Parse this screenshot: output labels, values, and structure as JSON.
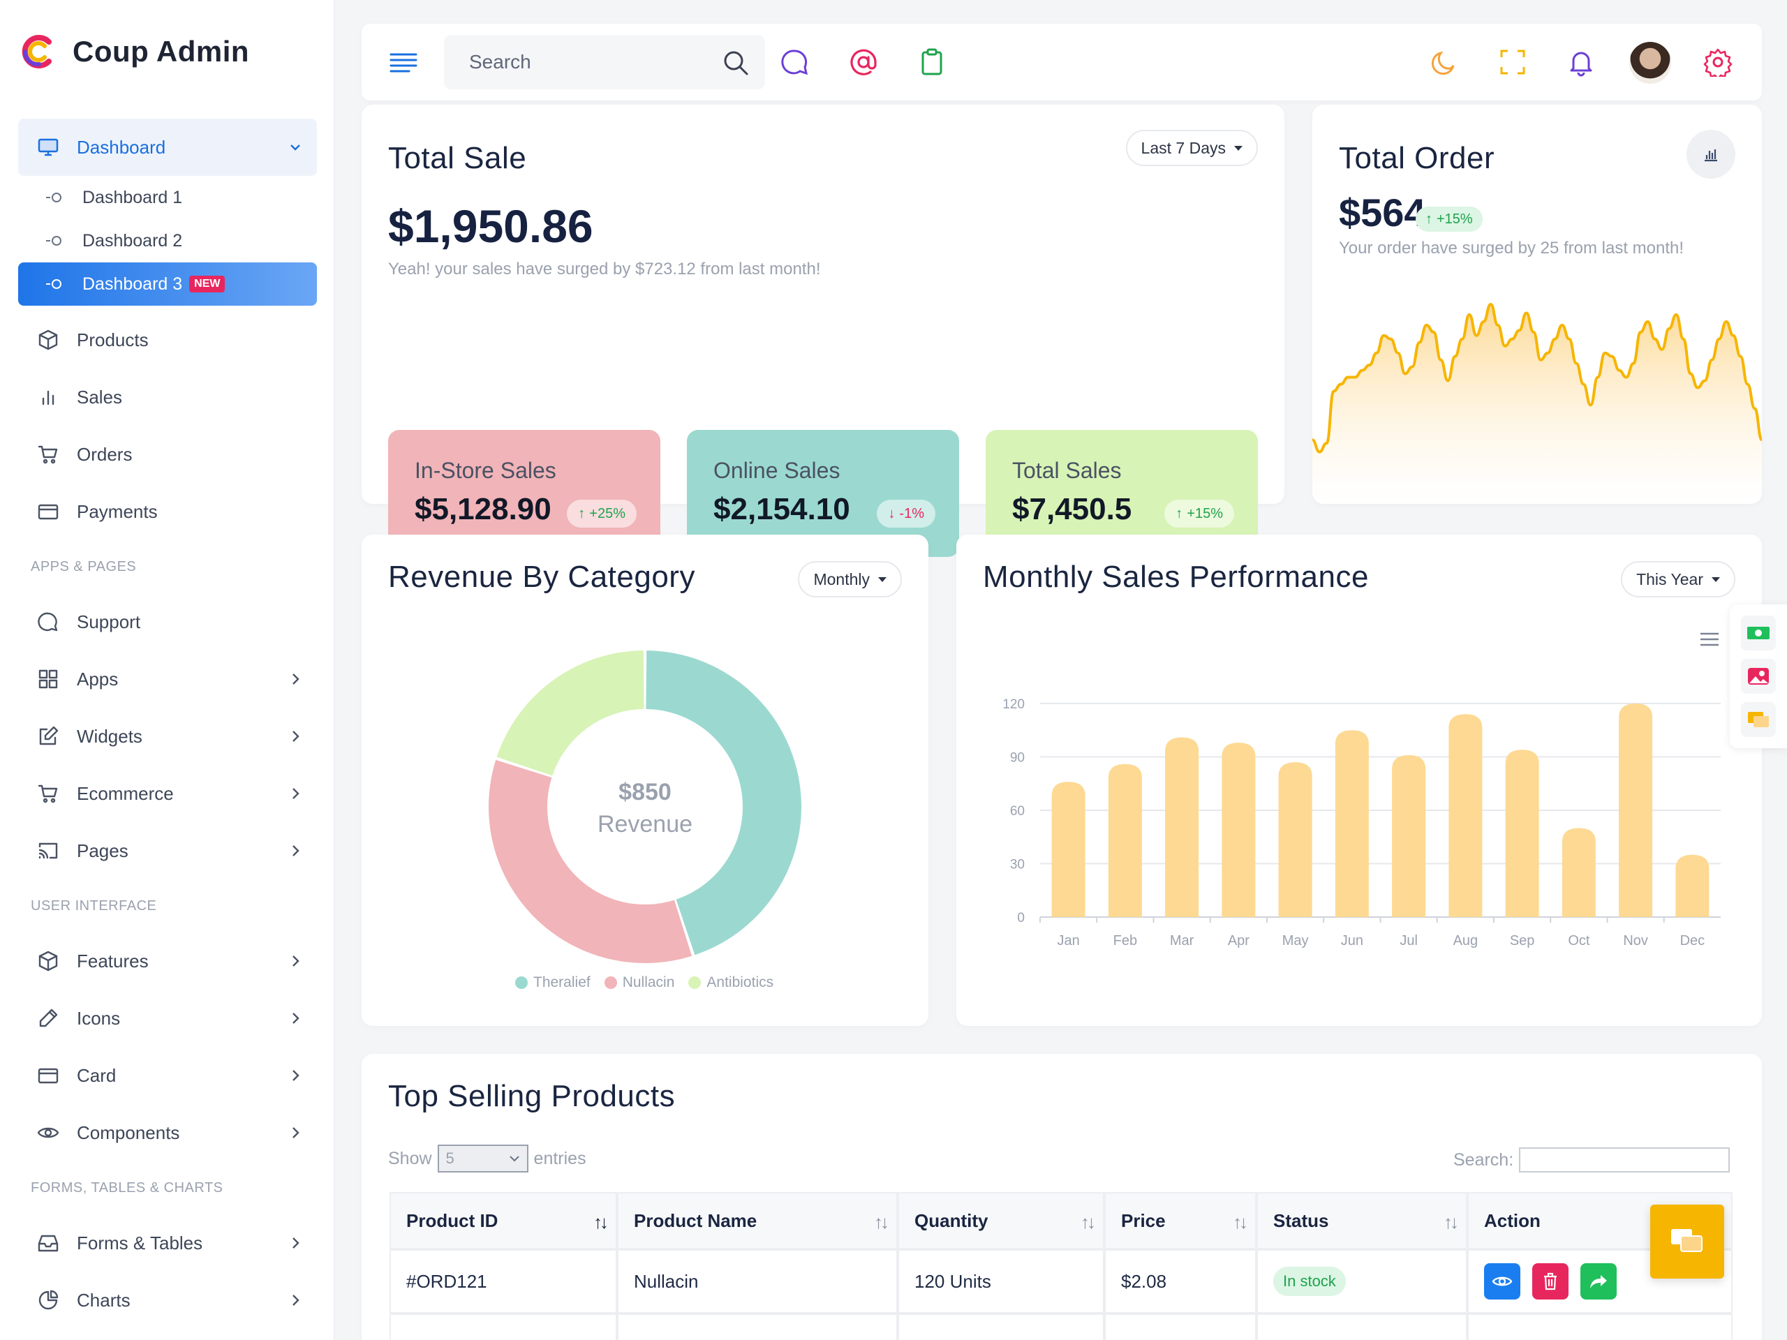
{
  "app": {
    "brand": "Coup Admin"
  },
  "sidebar": {
    "dashboard": "Dashboard",
    "sub_items": [
      {
        "label": "Dashboard 1"
      },
      {
        "label": "Dashboard 2"
      },
      {
        "label": "Dashboard 3",
        "badge": "NEW"
      }
    ],
    "main_items": [
      {
        "label": "Products",
        "icon": "box-icon"
      },
      {
        "label": "Sales",
        "icon": "bar-chart-icon"
      },
      {
        "label": "Orders",
        "icon": "cart-icon"
      },
      {
        "label": "Payments",
        "icon": "card-icon"
      }
    ],
    "sections": [
      {
        "title": "APPS & PAGES",
        "items": [
          {
            "label": "Support",
            "icon": "chat-icon",
            "has_children": false
          },
          {
            "label": "Apps",
            "icon": "grid-icon",
            "has_children": true
          },
          {
            "label": "Widgets",
            "icon": "edit-icon",
            "has_children": true
          },
          {
            "label": "Ecommerce",
            "icon": "cart-icon",
            "has_children": true
          },
          {
            "label": "Pages",
            "icon": "cast-icon",
            "has_children": true
          }
        ]
      },
      {
        "title": "USER INTERFACE",
        "items": [
          {
            "label": "Features",
            "icon": "box-icon",
            "has_children": true
          },
          {
            "label": "Icons",
            "icon": "pen-icon",
            "has_children": true
          },
          {
            "label": "Card",
            "icon": "card-icon",
            "has_children": true
          },
          {
            "label": "Components",
            "icon": "eye-icon",
            "has_children": true
          }
        ]
      },
      {
        "title": "FORMS, TABLES & CHARTS",
        "items": [
          {
            "label": "Forms & Tables",
            "icon": "inbox-icon",
            "has_children": true
          },
          {
            "label": "Charts",
            "icon": "pie-icon",
            "has_children": true
          }
        ]
      }
    ]
  },
  "topbar": {
    "search_placeholder": "Search"
  },
  "total_sale": {
    "title": "Total Sale",
    "range": "Last 7 Days",
    "value": "$1,950.86",
    "note": "Yeah! your sales have surged by $723.12 from last month!",
    "tiles": [
      {
        "label": "In-Store Sales",
        "value": "$5,128.90",
        "change": "+25%",
        "direction": "up",
        "bg": "#f1b4b8"
      },
      {
        "label": "Online Sales",
        "value": "$2,154.10",
        "change": "-1%",
        "direction": "down",
        "bg": "#9bd9d0"
      },
      {
        "label": "Total Sales",
        "value": "$7,450.5",
        "change": "+15%",
        "direction": "up",
        "bg": "#d7f3b6"
      }
    ]
  },
  "total_order": {
    "title": "Total Order",
    "value": "$564",
    "change": "+15%",
    "note": "Your order have surged by 25 from last month!"
  },
  "revenue_by_category": {
    "title": "Revenue By Category",
    "range": "Monthly",
    "center_value": "$850",
    "center_label": "Revenue"
  },
  "monthly_sales": {
    "title": "Monthly Sales Performance",
    "range": "This Year"
  },
  "chart_data": [
    {
      "type": "pie",
      "categories": [
        "Theralief",
        "Nullacin",
        "Antibiotics"
      ],
      "values": [
        45,
        35,
        20
      ],
      "colors": [
        "#9bd9d0",
        "#f1b4b8",
        "#d7f3b6"
      ],
      "legend": "bottom"
    },
    {
      "type": "bar",
      "categories": [
        "Jan",
        "Feb",
        "Mar",
        "Apr",
        "May",
        "Jun",
        "Jul",
        "Aug",
        "Sep",
        "Oct",
        "Nov",
        "Dec"
      ],
      "values": [
        76,
        86,
        101,
        98,
        87,
        105,
        91,
        114,
        94,
        50,
        120,
        35
      ],
      "yticks": [
        0,
        30,
        60,
        90,
        120
      ],
      "ylim": [
        0,
        120
      ],
      "grid": true,
      "color": "#fdd993"
    },
    {
      "type": "area",
      "values": [
        12,
        5,
        10,
        40,
        44,
        48,
        48,
        52,
        55,
        62,
        72,
        70,
        62,
        50,
        54,
        68,
        78,
        74,
        58,
        46,
        60,
        70,
        84,
        72,
        80,
        90,
        78,
        66,
        70,
        75,
        85,
        74,
        58,
        62,
        70,
        78,
        70,
        56,
        44,
        32,
        48,
        62,
        60,
        52,
        48,
        56,
        74,
        80,
        70,
        64,
        76,
        84,
        70,
        50,
        42,
        46,
        58,
        70,
        80,
        72,
        60,
        44,
        30,
        12
      ],
      "color": "#f6b500"
    }
  ],
  "top_selling": {
    "title": "Top Selling Products",
    "show_label": "Show",
    "entries_value": "5",
    "entries_label": "entries",
    "search_label": "Search:",
    "columns": [
      "Product ID",
      "Product Name",
      "Quantity",
      "Price",
      "Status",
      "Action"
    ],
    "rows": [
      {
        "id": "#ORD121",
        "name": "Nullacin",
        "qty": "120 Units",
        "price": "$2.08",
        "status": "In stock"
      }
    ]
  }
}
